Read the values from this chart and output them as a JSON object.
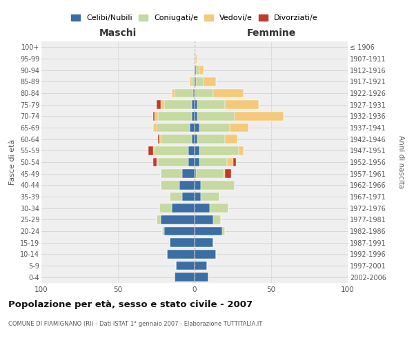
{
  "age_groups": [
    "0-4",
    "5-9",
    "10-14",
    "15-19",
    "20-24",
    "25-29",
    "30-34",
    "35-39",
    "40-44",
    "45-49",
    "50-54",
    "55-59",
    "60-64",
    "65-69",
    "70-74",
    "75-79",
    "80-84",
    "85-89",
    "90-94",
    "95-99",
    "100+"
  ],
  "birth_years": [
    "2002-2006",
    "1997-2001",
    "1992-1996",
    "1987-1991",
    "1982-1986",
    "1977-1981",
    "1972-1976",
    "1967-1971",
    "1962-1966",
    "1957-1961",
    "1952-1956",
    "1947-1951",
    "1942-1946",
    "1937-1941",
    "1932-1936",
    "1927-1931",
    "1922-1926",
    "1917-1921",
    "1912-1916",
    "1907-1911",
    "≤ 1906"
  ],
  "maschi": {
    "celibi": [
      13,
      12,
      18,
      16,
      20,
      22,
      15,
      8,
      10,
      8,
      4,
      4,
      2,
      3,
      2,
      2,
      1,
      0,
      0,
      0,
      0
    ],
    "coniugati": [
      0,
      0,
      0,
      0,
      1,
      3,
      8,
      8,
      12,
      14,
      20,
      22,
      20,
      22,
      22,
      18,
      12,
      2,
      0,
      0,
      0
    ],
    "vedovi": [
      0,
      0,
      0,
      0,
      0,
      0,
      0,
      0,
      0,
      0,
      1,
      1,
      1,
      2,
      2,
      2,
      2,
      1,
      0,
      0,
      0
    ],
    "divorziati": [
      0,
      0,
      0,
      0,
      0,
      0,
      0,
      0,
      0,
      0,
      2,
      3,
      1,
      0,
      1,
      3,
      0,
      0,
      0,
      0,
      0
    ]
  },
  "femmine": {
    "nubili": [
      9,
      8,
      14,
      12,
      18,
      12,
      10,
      4,
      4,
      1,
      3,
      3,
      2,
      3,
      2,
      2,
      0,
      1,
      1,
      0,
      0
    ],
    "coniugate": [
      0,
      0,
      0,
      0,
      2,
      5,
      12,
      12,
      22,
      18,
      18,
      26,
      18,
      20,
      24,
      18,
      12,
      5,
      2,
      1,
      0
    ],
    "vedove": [
      0,
      0,
      0,
      0,
      0,
      0,
      0,
      0,
      0,
      1,
      4,
      3,
      8,
      12,
      32,
      22,
      20,
      8,
      3,
      1,
      0
    ],
    "divorziate": [
      0,
      0,
      0,
      0,
      0,
      0,
      0,
      0,
      0,
      4,
      2,
      0,
      0,
      0,
      0,
      0,
      0,
      0,
      0,
      0,
      0
    ]
  },
  "colors": {
    "celibi_nubili": "#3a6ea5",
    "coniugati": "#c5d9a0",
    "vedovi": "#f5c97a",
    "divorziati": "#c0392b"
  },
  "title": "Popolazione per età, sesso e stato civile - 2007",
  "subtitle": "COMUNE DI FIAMIGNANO (RI) - Dati ISTAT 1° gennaio 2007 - Elaborazione TUTTITALIA.IT",
  "ylabel": "Fasce di età",
  "ylabel2": "Anni di nascita",
  "xlabel_maschi": "Maschi",
  "xlabel_femmine": "Femmine",
  "xlim": 100,
  "bg_color": "#efefef",
  "grid_color": "#cccccc"
}
